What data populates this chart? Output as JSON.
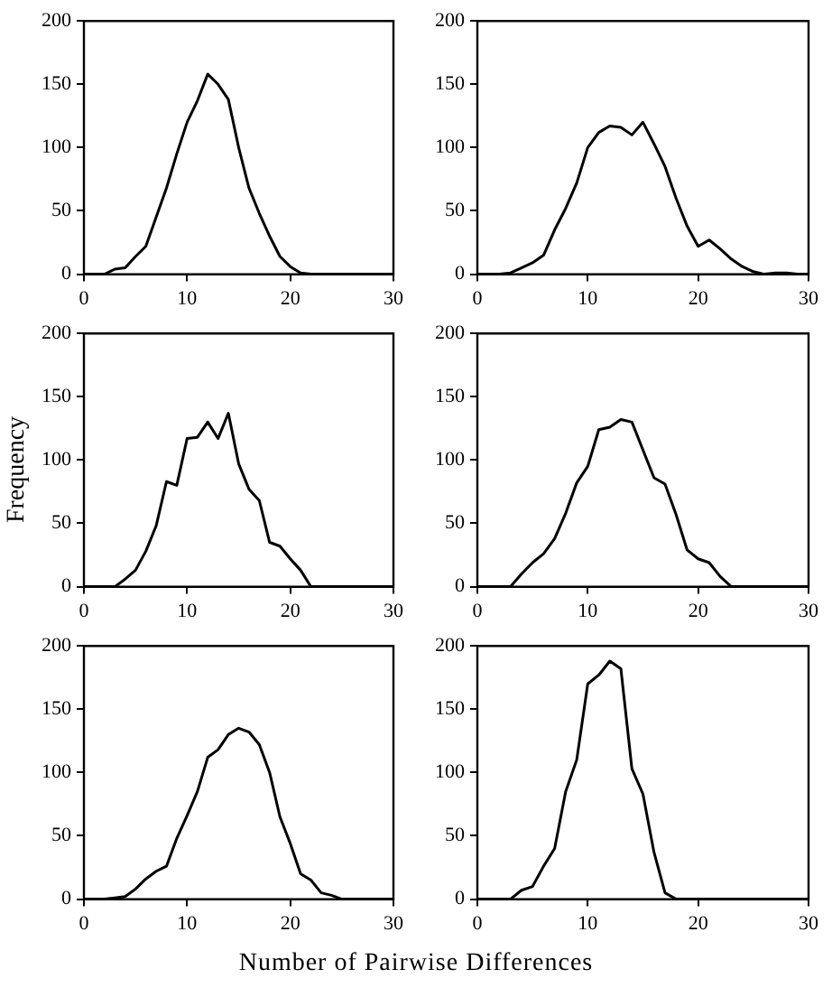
{
  "chart_data": [
    {
      "type": "line",
      "x": [
        0,
        1,
        2,
        3,
        4,
        5,
        6,
        7,
        8,
        9,
        10,
        11,
        12,
        13,
        14,
        15,
        16,
        17,
        18,
        19,
        20,
        21,
        22,
        23,
        24,
        25,
        26,
        27,
        28,
        29,
        30
      ],
      "series": [
        {
          "color": "#000000",
          "values": [
            0,
            0,
            0,
            4,
            5,
            14,
            22,
            45,
            68,
            95,
            120,
            137,
            158,
            150,
            138,
            100,
            68,
            48,
            30,
            14,
            6,
            1,
            0,
            0,
            0,
            0,
            0,
            0,
            0,
            0,
            0
          ]
        }
      ],
      "xlim": [
        0,
        30
      ],
      "xticks": [
        0,
        10,
        20,
        30
      ],
      "ylim": [
        0,
        200
      ],
      "yticks": [
        0,
        50,
        100,
        150,
        200
      ],
      "marker": "none"
    },
    {
      "type": "line",
      "x": [
        0,
        1,
        2,
        3,
        4,
        5,
        6,
        7,
        8,
        9,
        10,
        11,
        12,
        13,
        14,
        15,
        16,
        17,
        18,
        19,
        20,
        21,
        22,
        23,
        24,
        25,
        26,
        27,
        28,
        29,
        30
      ],
      "series": [
        {
          "color": "#000000",
          "values": [
            0,
            0,
            0,
            1,
            5,
            9,
            15,
            35,
            52,
            72,
            100,
            112,
            117,
            116,
            110,
            120,
            103,
            85,
            60,
            38,
            22,
            27,
            20,
            12,
            6,
            2,
            0,
            1,
            1,
            0,
            0
          ]
        }
      ],
      "xlim": [
        0,
        30
      ],
      "xticks": [
        0,
        10,
        20,
        30
      ],
      "ylim": [
        0,
        200
      ],
      "yticks": [
        0,
        50,
        100,
        150,
        200
      ],
      "marker": "none"
    },
    {
      "type": "line",
      "ylabel": "Frequency",
      "x": [
        0,
        1,
        2,
        3,
        4,
        5,
        6,
        7,
        8,
        9,
        10,
        11,
        12,
        13,
        14,
        15,
        16,
        17,
        18,
        19,
        20,
        21,
        22,
        23,
        24,
        25,
        26,
        27,
        28,
        29,
        30
      ],
      "series": [
        {
          "color": "#000000",
          "values": [
            0,
            0,
            0,
            0,
            6,
            13,
            28,
            48,
            83,
            80,
            117,
            118,
            130,
            117,
            137,
            97,
            77,
            68,
            35,
            32,
            22,
            13,
            0,
            0,
            0,
            0,
            0,
            0,
            0,
            0,
            0
          ]
        }
      ],
      "xlim": [
        0,
        30
      ],
      "xticks": [
        0,
        10,
        20,
        30
      ],
      "ylim": [
        0,
        200
      ],
      "yticks": [
        0,
        50,
        100,
        150,
        200
      ],
      "marker": "none"
    },
    {
      "type": "line",
      "x": [
        0,
        1,
        2,
        3,
        4,
        5,
        6,
        7,
        8,
        9,
        10,
        11,
        12,
        13,
        14,
        15,
        16,
        17,
        18,
        19,
        20,
        21,
        22,
        23,
        24,
        25,
        26,
        27,
        28,
        29,
        30
      ],
      "series": [
        {
          "color": "#000000",
          "values": [
            0,
            0,
            0,
            0,
            10,
            19,
            26,
            38,
            58,
            82,
            95,
            124,
            126,
            132,
            130,
            108,
            86,
            81,
            57,
            29,
            22,
            19,
            8,
            0,
            0,
            0,
            0,
            0,
            0,
            0,
            0
          ]
        }
      ],
      "xlim": [
        0,
        30
      ],
      "xticks": [
        0,
        10,
        20,
        30
      ],
      "ylim": [
        0,
        200
      ],
      "yticks": [
        0,
        50,
        100,
        150,
        200
      ],
      "marker": "none"
    },
    {
      "type": "line",
      "xlabel": "Number of Pairwise Differences",
      "x": [
        0,
        1,
        2,
        3,
        4,
        5,
        6,
        7,
        8,
        9,
        10,
        11,
        12,
        13,
        14,
        15,
        16,
        17,
        18,
        19,
        20,
        21,
        22,
        23,
        24,
        25,
        26,
        27,
        28,
        29,
        30
      ],
      "series": [
        {
          "color": "#000000",
          "values": [
            0,
            0,
            0,
            1,
            2,
            8,
            16,
            22,
            26,
            48,
            66,
            85,
            112,
            118,
            130,
            135,
            132,
            122,
            100,
            65,
            44,
            20,
            15,
            5,
            3,
            0,
            0,
            0,
            0,
            0,
            0
          ]
        }
      ],
      "xlim": [
        0,
        30
      ],
      "xticks": [
        0,
        10,
        20,
        30
      ],
      "ylim": [
        0,
        200
      ],
      "yticks": [
        0,
        50,
        100,
        150,
        200
      ],
      "marker": "none"
    },
    {
      "type": "line",
      "x": [
        0,
        1,
        2,
        3,
        4,
        5,
        6,
        7,
        8,
        9,
        10,
        11,
        12,
        13,
        14,
        15,
        16,
        17,
        18,
        19,
        20,
        21,
        22,
        23,
        24,
        25,
        26,
        27,
        28,
        29,
        30
      ],
      "series": [
        {
          "color": "#000000",
          "values": [
            0,
            0,
            0,
            0,
            7,
            10,
            26,
            40,
            85,
            110,
            170,
            177,
            188,
            182,
            103,
            83,
            37,
            5,
            0,
            0,
            0,
            0,
            0,
            0,
            0,
            0,
            0,
            0,
            0,
            0,
            0
          ]
        }
      ],
      "xlim": [
        0,
        30
      ],
      "xticks": [
        0,
        10,
        20,
        30
      ],
      "ylim": [
        0,
        200
      ],
      "yticks": [
        0,
        50,
        100,
        150,
        200
      ],
      "marker": "none"
    }
  ]
}
